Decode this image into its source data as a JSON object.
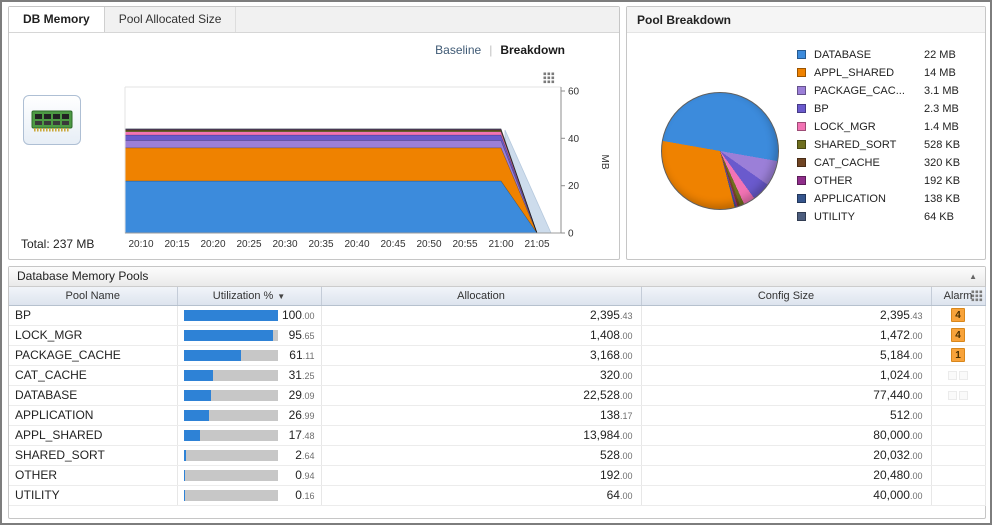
{
  "memory_panel": {
    "tabs": [
      {
        "label": "DB Memory",
        "selected": true
      },
      {
        "label": "Pool Allocated Size",
        "selected": false
      }
    ],
    "view_toggle": {
      "options": [
        {
          "label": "Baseline",
          "selected": false
        },
        {
          "label": "Breakdown",
          "selected": true
        }
      ]
    },
    "total_label": "Total: 237 MB"
  },
  "pie_panel": {
    "title": "Pool Breakdown"
  },
  "pools_table": {
    "title": "Database Memory Pools",
    "columns": [
      {
        "label": "Pool Name"
      },
      {
        "label": "Utilization %",
        "sort": "desc"
      },
      {
        "label": "Allocation"
      },
      {
        "label": "Config Size"
      },
      {
        "label": "Alarm",
        "has_settings_icon": true
      }
    ],
    "rows": [
      {
        "name": "BP",
        "utilization": "100.00",
        "allocation": "2,395.43",
        "config_size": "2,395.43",
        "alarm_count": 4
      },
      {
        "name": "LOCK_MGR",
        "utilization": "95.65",
        "allocation": "1,408.00",
        "config_size": "1,472.00",
        "alarm_count": 4
      },
      {
        "name": "PACKAGE_CACHE",
        "utilization": "61.11",
        "allocation": "3,168.00",
        "config_size": "5,184.00",
        "alarm_count": 1
      },
      {
        "name": "CAT_CACHE",
        "utilization": "31.25",
        "allocation": "320.00",
        "config_size": "1,024.00",
        "empty_markers": 2
      },
      {
        "name": "DATABASE",
        "utilization": "29.09",
        "allocation": "22,528.00",
        "config_size": "77,440.00",
        "empty_markers": 2
      },
      {
        "name": "APPLICATION",
        "utilization": "26.99",
        "allocation": "138.17",
        "config_size": "512.00"
      },
      {
        "name": "APPL_SHARED",
        "utilization": "17.48",
        "allocation": "13,984.00",
        "config_size": "80,000.00"
      },
      {
        "name": "SHARED_SORT",
        "utilization": "2.64",
        "allocation": "528.00",
        "config_size": "20,032.00"
      },
      {
        "name": "OTHER",
        "utilization": "0.94",
        "allocation": "192.00",
        "config_size": "20,480.00"
      },
      {
        "name": "UTILITY",
        "utilization": "0.16",
        "allocation": "64.00",
        "config_size": "40,000.00"
      }
    ]
  },
  "chart_data": [
    {
      "type": "area",
      "title": "DB Memory - Pool Allocated Size (stacked area, flat until 21:00 then declines to 0)",
      "ylabel": "MB",
      "ylim": [
        0,
        60
      ],
      "yticks": [
        0,
        20,
        40,
        60
      ],
      "x_labels": [
        "20:10",
        "20:15",
        "20:20",
        "20:25",
        "20:30",
        "20:35",
        "20:40",
        "20:45",
        "20:50",
        "20:55",
        "21:00",
        "21:05"
      ],
      "legend_position": "none",
      "grid": false,
      "series": [
        {
          "name": "DATABASE",
          "value_mb": 22,
          "color": "#3c8bdc"
        },
        {
          "name": "APPL_SHARED",
          "value_mb": 14,
          "color": "#ef8200"
        },
        {
          "name": "PACKAGE_CACHE",
          "value_mb": 3.1,
          "color": "#9b7fd8"
        },
        {
          "name": "BP",
          "value_mb": 2.3,
          "color": "#6a5acd"
        },
        {
          "name": "LOCK_MGR",
          "value_mb": 1.4,
          "color": "#f273b4"
        },
        {
          "name": "SHARED_SORT",
          "value_mb": 0.516,
          "color": "#6e6e1e"
        },
        {
          "name": "CAT_CACHE",
          "value_mb": 0.3125,
          "color": "#6f4423"
        },
        {
          "name": "OTHER",
          "value_mb": 0.1875,
          "color": "#8f2d8a"
        },
        {
          "name": "APPLICATION",
          "value_mb": 0.1348,
          "color": "#35558d"
        },
        {
          "name": "UTILITY",
          "value_mb": 0.0625,
          "color": "#4c5d7e"
        }
      ],
      "forecast_color": "#cddcec"
    },
    {
      "type": "pie",
      "title": "Pool Breakdown",
      "start_angle_deg": 280,
      "draw_order": [
        0,
        2,
        3,
        4,
        5,
        6,
        7,
        8,
        9,
        1
      ],
      "slices": [
        {
          "label": "DATABASE",
          "display_label": "DATABASE",
          "display": "22 MB",
          "value_mb": 22,
          "color": "#3c8bdc"
        },
        {
          "label": "APPL_SHARED",
          "display_label": "APPL_SHARED",
          "display": "14 MB",
          "value_mb": 14,
          "color": "#ef8200"
        },
        {
          "label": "PACKAGE_CACHE",
          "display_label": "PACKAGE_CAC...",
          "display": "3.1 MB",
          "value_mb": 3.1,
          "color": "#9b7fd8"
        },
        {
          "label": "BP",
          "display_label": "BP",
          "display": "2.3 MB",
          "value_mb": 2.3,
          "color": "#6a5acd"
        },
        {
          "label": "LOCK_MGR",
          "display_label": "LOCK_MGR",
          "display": "1.4 MB",
          "value_mb": 1.4,
          "color": "#f273b4"
        },
        {
          "label": "SHARED_SORT",
          "display_label": "SHARED_SORT",
          "display": "528 KB",
          "value_mb": 0.516,
          "color": "#6e6e1e"
        },
        {
          "label": "CAT_CACHE",
          "display_label": "CAT_CACHE",
          "display": "320 KB",
          "value_mb": 0.3125,
          "color": "#6f4423"
        },
        {
          "label": "OTHER",
          "display_label": "OTHER",
          "display": "192 KB",
          "value_mb": 0.1875,
          "color": "#8f2d8a"
        },
        {
          "label": "APPLICATION",
          "display_label": "APPLICATION",
          "display": "138 KB",
          "value_mb": 0.1348,
          "color": "#35558d"
        },
        {
          "label": "UTILITY",
          "display_label": "UTILITY",
          "display": "64 KB",
          "value_mb": 0.0625,
          "color": "#4c5d7e"
        }
      ],
      "legend_position": "right"
    }
  ]
}
